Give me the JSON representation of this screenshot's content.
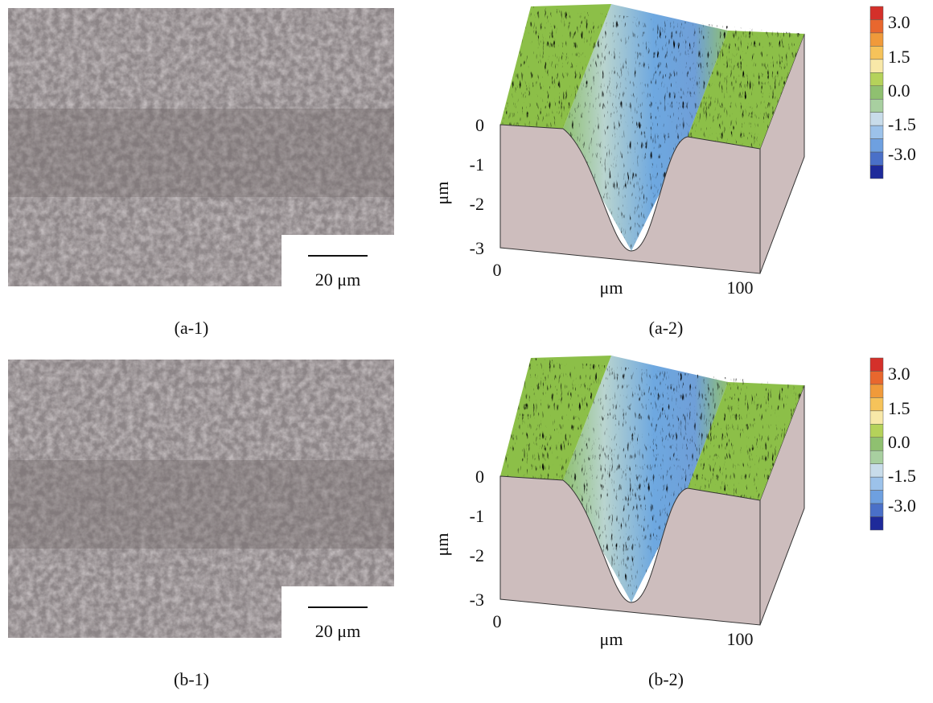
{
  "panels": [
    {
      "label": "(a-1)",
      "scale_bar": "20 μm"
    },
    {
      "label": "(a-2)",
      "z_axis_label": "μm",
      "z_ticks": [
        "0",
        "-1",
        "-2",
        "-3"
      ],
      "x_axis_label": "μm",
      "x_ticks": [
        "0",
        "100"
      ],
      "colorbar_ticks": [
        "3.0",
        "1.5",
        "0.0",
        "-1.5",
        "-3.0"
      ]
    },
    {
      "label": "(b-1)",
      "scale_bar": "20 μm"
    },
    {
      "label": "(b-2)",
      "z_axis_label": "μm",
      "z_ticks": [
        "0",
        "-1",
        "-2",
        "-3"
      ],
      "x_axis_label": "μm",
      "x_ticks": [
        "0",
        "100"
      ],
      "colorbar_ticks": [
        "3.0",
        "1.5",
        "0.0",
        "-1.5",
        "-3.0"
      ]
    }
  ]
}
